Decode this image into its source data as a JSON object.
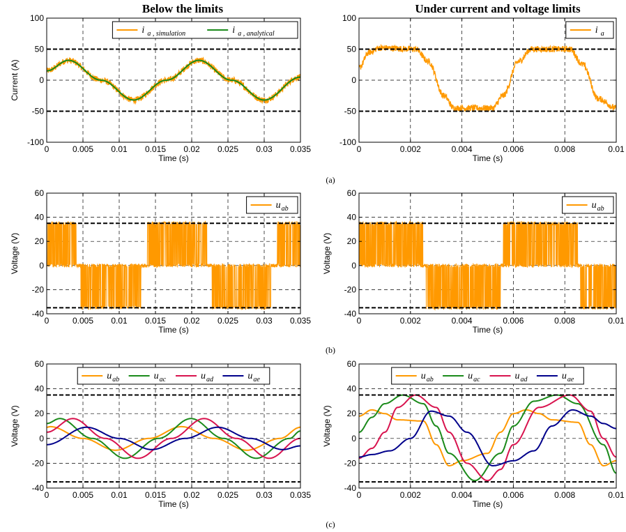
{
  "column_titles": [
    "Below the limits",
    "Under current and voltage limits"
  ],
  "panel_tags": [
    "(a)",
    "(b)",
    "(c)"
  ],
  "colors": {
    "orange": "#ff9900",
    "green": "#1a8a1a",
    "red": "#d8134e",
    "blue": "#00008b"
  },
  "chart_data": [
    {
      "id": "a-left",
      "type": "line",
      "xlabel": "Time (s)",
      "ylabel": "Current (A)",
      "xlim": [
        0,
        0.035
      ],
      "ylim": [
        -100,
        100
      ],
      "xticks": [
        "0",
        "0.005",
        "0.01",
        "0.015",
        "0.02",
        "0.025",
        "0.03",
        "0.035"
      ],
      "yticks": [
        "-100",
        "-50",
        "0",
        "50",
        "100"
      ],
      "limit_lines": [
        50,
        -50
      ],
      "grid": true,
      "legend_placement": "top-right",
      "legend": [
        {
          "main": "i",
          "sub": "a , simulation",
          "color": "orange"
        },
        {
          "main": "i",
          "sub": "a , analytical",
          "color": "green"
        }
      ],
      "series": [
        {
          "name": "i_a , simulation",
          "color": "orange",
          "noisy": true,
          "x": [
            0,
            0.003,
            0.0075,
            0.012,
            0.0165,
            0.021,
            0.0255,
            0.03,
            0.035
          ],
          "y": [
            15,
            32,
            0,
            -32,
            0,
            32,
            0,
            -32,
            5
          ]
        },
        {
          "name": "i_a , analytical",
          "color": "green",
          "x": [
            0,
            0.003,
            0.0075,
            0.012,
            0.0165,
            0.021,
            0.0255,
            0.03,
            0.035
          ],
          "y": [
            15,
            32,
            0,
            -32,
            0,
            32,
            0,
            -32,
            5
          ]
        }
      ]
    },
    {
      "id": "a-right",
      "type": "line",
      "xlabel": "Time (s)",
      "ylabel": "",
      "xlim": [
        0,
        0.01
      ],
      "ylim": [
        -100,
        100
      ],
      "xticks": [
        "0",
        "0.002",
        "0.004",
        "0.006",
        "0.008",
        "0.01"
      ],
      "yticks": [
        "-100",
        "-50",
        "0",
        "50",
        "100"
      ],
      "limit_lines": [
        50,
        -50
      ],
      "grid": true,
      "legend_placement": "top-right",
      "legend": [
        {
          "main": "i",
          "sub": "a",
          "color": "orange"
        }
      ],
      "series": [
        {
          "name": "i_a",
          "color": "orange",
          "noisy": true,
          "x": [
            0,
            0.0004,
            0.0008,
            0.0022,
            0.0027,
            0.0033,
            0.0037,
            0.0052,
            0.0056,
            0.0062,
            0.0067,
            0.0082,
            0.0087,
            0.0093,
            0.01
          ],
          "y": [
            20,
            45,
            52,
            50,
            30,
            -25,
            -45,
            -45,
            -25,
            30,
            50,
            50,
            25,
            -30,
            -45
          ]
        }
      ]
    },
    {
      "id": "b-left",
      "type": "line",
      "xlabel": "Time (s)",
      "ylabel": "Voltage (V)",
      "xlim": [
        0,
        0.035
      ],
      "ylim": [
        -40,
        60
      ],
      "xticks": [
        "0",
        "0.005",
        "0.01",
        "0.015",
        "0.02",
        "0.025",
        "0.03",
        "0.035"
      ],
      "yticks": [
        "-40",
        "-20",
        "0",
        "20",
        "40",
        "60"
      ],
      "limit_lines": [
        35,
        -35
      ],
      "grid": true,
      "legend_placement": "top-right",
      "legend": [
        {
          "main": "u",
          "sub": "ab",
          "color": "orange"
        }
      ],
      "series": [
        {
          "name": "u_ab",
          "color": "orange",
          "pwm": true,
          "segments": [
            {
              "x0": 0,
              "x1": 0.0041,
              "level": 35
            },
            {
              "x0": 0.0041,
              "x1": 0.0047,
              "level": 0
            },
            {
              "x0": 0.0047,
              "x1": 0.013,
              "level": -35
            },
            {
              "x0": 0.013,
              "x1": 0.0139,
              "level": 0
            },
            {
              "x0": 0.0139,
              "x1": 0.0222,
              "level": 35
            },
            {
              "x0": 0.0222,
              "x1": 0.0228,
              "level": 0
            },
            {
              "x0": 0.0228,
              "x1": 0.031,
              "level": -35
            },
            {
              "x0": 0.031,
              "x1": 0.0318,
              "level": 0
            },
            {
              "x0": 0.0318,
              "x1": 0.035,
              "level": 35
            }
          ]
        }
      ]
    },
    {
      "id": "b-right",
      "type": "line",
      "xlabel": "Time (s)",
      "ylabel": "Voltage (V)",
      "xlim": [
        0,
        0.01
      ],
      "ylim": [
        -40,
        60
      ],
      "xticks": [
        "0",
        "0.002",
        "0.004",
        "0.006",
        "0.008",
        "0.01"
      ],
      "yticks": [
        "-40",
        "-20",
        "0",
        "20",
        "40",
        "60"
      ],
      "limit_lines": [
        35,
        -35
      ],
      "grid": true,
      "legend_placement": "top-right",
      "legend": [
        {
          "main": "u",
          "sub": "ab",
          "color": "orange"
        }
      ],
      "series": [
        {
          "name": "u_ab",
          "color": "orange",
          "pwm": true,
          "segments": [
            {
              "x0": 0,
              "x1": 0.0025,
              "level": 35
            },
            {
              "x0": 0.0025,
              "x1": 0.0026,
              "level": 0
            },
            {
              "x0": 0.0026,
              "x1": 0.0055,
              "level": -35
            },
            {
              "x0": 0.0055,
              "x1": 0.0056,
              "level": 0
            },
            {
              "x0": 0.0056,
              "x1": 0.0085,
              "level": 35
            },
            {
              "x0": 0.0085,
              "x1": 0.0086,
              "level": 0
            },
            {
              "x0": 0.0086,
              "x1": 0.01,
              "level": -35
            }
          ]
        }
      ]
    },
    {
      "id": "c-left",
      "type": "line",
      "xlabel": "Time (s)",
      "ylabel": "Voltage (V)",
      "xlim": [
        0,
        0.035
      ],
      "ylim": [
        -40,
        60
      ],
      "xticks": [
        "0",
        "0.005",
        "0.01",
        "0.015",
        "0.02",
        "0.025",
        "0.03",
        "0.035"
      ],
      "yticks": [
        "-40",
        "-20",
        "0",
        "20",
        "40",
        "60"
      ],
      "limit_lines": [
        35,
        -35
      ],
      "grid": true,
      "legend_placement": "top",
      "legend": [
        {
          "main": "u",
          "sub": "ab",
          "color": "orange"
        },
        {
          "main": "u",
          "sub": "ac",
          "color": "green"
        },
        {
          "main": "u",
          "sub": "ad",
          "color": "red"
        },
        {
          "main": "u",
          "sub": "ae",
          "color": "blue"
        }
      ],
      "series": [
        {
          "name": "u_ab",
          "color": "orange",
          "x": [
            0,
            0.0005,
            0.005,
            0.0095,
            0.0141,
            0.0186,
            0.0231,
            0.0276,
            0.0322,
            0.035
          ],
          "y": [
            9,
            9.5,
            0,
            -9.5,
            0,
            9.5,
            0,
            -9.5,
            0,
            9
          ]
        },
        {
          "name": "u_ac",
          "color": "green",
          "x": [
            0,
            0.0018,
            0.0063,
            0.0108,
            0.0154,
            0.0199,
            0.0244,
            0.0289,
            0.0335,
            0.035
          ],
          "y": [
            12,
            16,
            0,
            -16,
            0,
            16,
            0,
            -16,
            0,
            6
          ]
        },
        {
          "name": "u_ad",
          "color": "red",
          "x": [
            0,
            0.0036,
            0.0081,
            0.0126,
            0.0172,
            0.0217,
            0.0262,
            0.0307,
            0.035
          ],
          "y": [
            5,
            16,
            0,
            -16,
            0,
            16,
            0,
            -16,
            0
          ]
        },
        {
          "name": "u_ae",
          "color": "blue",
          "x": [
            0,
            0.0055,
            0.01,
            0.0145,
            0.0191,
            0.0236,
            0.0281,
            0.0326,
            0.035
          ],
          "y": [
            -5,
            9,
            0,
            -9,
            0,
            9,
            0,
            -9,
            -6
          ]
        }
      ]
    },
    {
      "id": "c-right",
      "type": "line",
      "xlabel": "Time (s)",
      "ylabel": "Voltage (V)",
      "xlim": [
        0,
        0.01
      ],
      "ylim": [
        -40,
        60
      ],
      "xticks": [
        "0",
        "0.002",
        "0.004",
        "0.006",
        "0.008",
        "0.01"
      ],
      "yticks": [
        "-40",
        "-20",
        "0",
        "20",
        "40",
        "60"
      ],
      "limit_lines": [
        35,
        -35
      ],
      "grid": true,
      "legend_placement": "top",
      "legend": [
        {
          "main": "u",
          "sub": "ab",
          "color": "orange"
        },
        {
          "main": "u",
          "sub": "ac",
          "color": "green"
        },
        {
          "main": "u",
          "sub": "ad",
          "color": "red"
        },
        {
          "main": "u",
          "sub": "ae",
          "color": "blue"
        }
      ],
      "series": [
        {
          "name": "u_ab",
          "color": "orange",
          "x": [
            0,
            0.0005,
            0.001,
            0.0015,
            0.0025,
            0.003,
            0.0035,
            0.004,
            0.005,
            0.0055,
            0.006,
            0.0065,
            0.007,
            0.0075,
            0.0085,
            0.009,
            0.0095,
            0.01
          ],
          "y": [
            18,
            23,
            20,
            15,
            14,
            -5,
            -22,
            -18,
            -12,
            5,
            20,
            23,
            20,
            15,
            13,
            -5,
            -22,
            -18
          ]
        },
        {
          "name": "u_ac",
          "color": "green",
          "x": [
            0,
            0.0005,
            0.001,
            0.0017,
            0.0025,
            0.003,
            0.0035,
            0.0045,
            0.0055,
            0.006,
            0.0068,
            0.0077,
            0.0085,
            0.0095,
            0.01
          ],
          "y": [
            5,
            17,
            28,
            35,
            28,
            10,
            -12,
            -34,
            -12,
            10,
            30,
            35,
            28,
            -5,
            -28
          ]
        },
        {
          "name": "u_ad",
          "color": "red",
          "x": [
            0,
            0.0005,
            0.001,
            0.0015,
            0.0022,
            0.003,
            0.0035,
            0.0042,
            0.005,
            0.0055,
            0.006,
            0.007,
            0.0082,
            0.009,
            0.0095,
            0.01
          ],
          "y": [
            -16,
            -8,
            5,
            25,
            35,
            25,
            5,
            -20,
            -34,
            -25,
            -5,
            25,
            35,
            22,
            0,
            -15
          ]
        },
        {
          "name": "u_ae",
          "color": "blue",
          "x": [
            0,
            0.0005,
            0.0012,
            0.002,
            0.0028,
            0.0035,
            0.0042,
            0.0052,
            0.006,
            0.0068,
            0.0075,
            0.0083,
            0.009,
            0.0095,
            0.01
          ],
          "y": [
            -15,
            -13,
            -10,
            0,
            22,
            18,
            5,
            -22,
            -18,
            -10,
            10,
            23,
            18,
            12,
            8
          ]
        }
      ]
    }
  ]
}
